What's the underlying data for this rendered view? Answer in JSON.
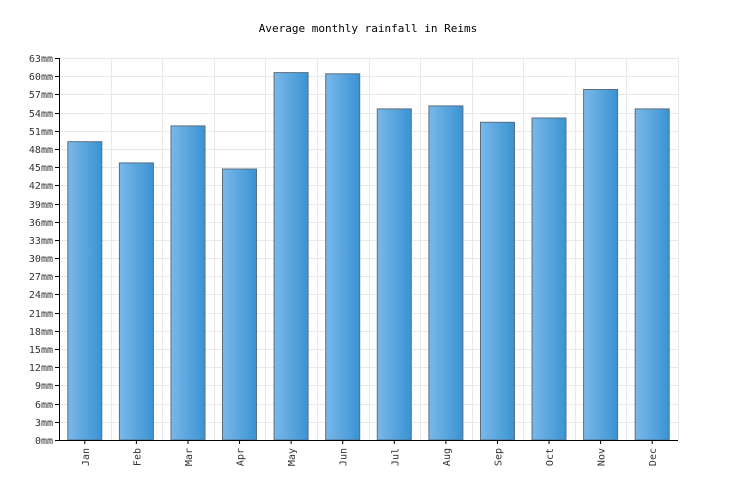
{
  "chart_data": {
    "type": "bar",
    "title": "Average monthly rainfall in Reims",
    "xlabel": "",
    "ylabel": "",
    "unit": "mm",
    "categories": [
      "Jan",
      "Feb",
      "Mar",
      "Apr",
      "May",
      "Jun",
      "Jul",
      "Aug",
      "Sep",
      "Oct",
      "Nov",
      "Dec"
    ],
    "values": [
      49.2,
      45.7,
      51.8,
      44.7,
      60.6,
      60.4,
      54.6,
      55.1,
      52.4,
      53.1,
      57.8,
      54.6
    ],
    "ylim": [
      0,
      63
    ],
    "yticks": [
      0,
      3,
      6,
      9,
      12,
      15,
      18,
      21,
      24,
      27,
      30,
      33,
      36,
      39,
      42,
      45,
      48,
      51,
      54,
      57,
      60,
      63
    ],
    "ytick_labels": [
      "0mm",
      "3mm",
      "6mm",
      "9mm",
      "12mm",
      "15mm",
      "18mm",
      "21mm",
      "24mm",
      "27mm",
      "30mm",
      "33mm",
      "36mm",
      "39mm",
      "42mm",
      "45mm",
      "48mm",
      "51mm",
      "54mm",
      "57mm",
      "60mm",
      "63mm"
    ],
    "grid": true,
    "legend": "none",
    "colors": {
      "bar_light": "#7ab8ea",
      "bar_dark": "#3a93d2",
      "bar_stroke": "#5a6e80",
      "grid": "#e8e8e8",
      "axis": "#000000"
    }
  }
}
